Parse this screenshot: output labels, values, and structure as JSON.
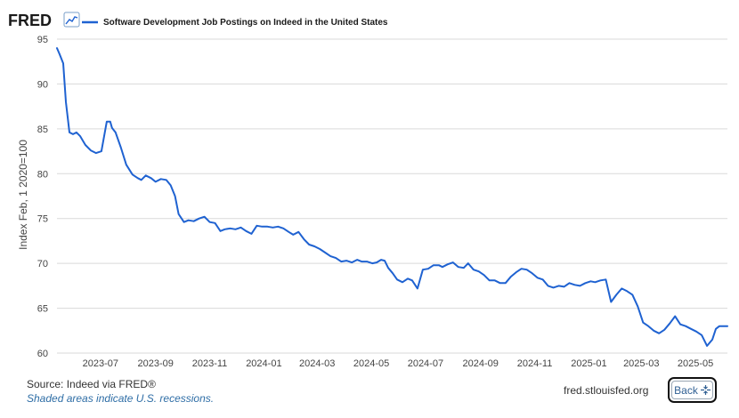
{
  "header": {
    "logo": "FRED",
    "legend_label": "Software Development Job Postings on Indeed in the United States",
    "logo_icon": "chart-line-icon"
  },
  "footer": {
    "source": "Source: Indeed via FRED®",
    "note": "Shaded areas indicate U.S. recessions.",
    "site": "fred.stlouisfed.org",
    "back_label": "Back",
    "back_icon": "collapse-arrows-icon"
  },
  "colors": {
    "series": "#1f62d1",
    "grid": "#d9d9d9",
    "axis_text": "#444444",
    "logo": "#1a1a1a"
  },
  "chart_data": {
    "type": "line",
    "title": "",
    "xlabel": "",
    "ylabel": "Index Feb, 1 2020=100",
    "ylim": [
      60,
      95
    ],
    "yticks": [
      60,
      65,
      70,
      75,
      80,
      85,
      90,
      95
    ],
    "xlim": [
      "2023-05-13",
      "2025-06-06"
    ],
    "xticks": [
      "2023-07",
      "2023-09",
      "2023-11",
      "2024-01",
      "2024-03",
      "2024-05",
      "2024-07",
      "2024-09",
      "2024-11",
      "2025-01",
      "2025-03",
      "2025-05"
    ],
    "grid": true,
    "legend": "top",
    "series": [
      {
        "name": "Software Development Job Postings on Indeed in the United States",
        "x": [
          "2023-05-13",
          "2023-05-16",
          "2023-05-20",
          "2023-05-23",
          "2023-05-27",
          "2023-05-31",
          "2023-06-04",
          "2023-06-08",
          "2023-06-14",
          "2023-06-20",
          "2023-06-26",
          "2023-07-02",
          "2023-07-08",
          "2023-07-12",
          "2023-07-14",
          "2023-07-18",
          "2023-07-24",
          "2023-07-30",
          "2023-08-06",
          "2023-08-12",
          "2023-08-16",
          "2023-08-21",
          "2023-08-27",
          "2023-09-01",
          "2023-09-07",
          "2023-09-13",
          "2023-09-18",
          "2023-09-23",
          "2023-09-27",
          "2023-10-03",
          "2023-10-08",
          "2023-10-14",
          "2023-10-20",
          "2023-10-26",
          "2023-11-01",
          "2023-11-07",
          "2023-11-13",
          "2023-11-18",
          "2023-11-24",
          "2023-11-30",
          "2023-12-06",
          "2023-12-12",
          "2023-12-18",
          "2023-12-24",
          "2023-12-30",
          "2024-01-05",
          "2024-01-11",
          "2024-01-17",
          "2024-01-23",
          "2024-01-29",
          "2024-02-03",
          "2024-02-09",
          "2024-02-15",
          "2024-02-21",
          "2024-02-27",
          "2024-03-04",
          "2024-03-10",
          "2024-03-16",
          "2024-03-22",
          "2024-03-28",
          "2024-04-03",
          "2024-04-09",
          "2024-04-15",
          "2024-04-20",
          "2024-04-26",
          "2024-05-02",
          "2024-05-07",
          "2024-05-12",
          "2024-05-16",
          "2024-05-20",
          "2024-05-25",
          "2024-05-30",
          "2024-06-05",
          "2024-06-11",
          "2024-06-16",
          "2024-06-22",
          "2024-06-28",
          "2024-07-04",
          "2024-07-10",
          "2024-07-16",
          "2024-07-20",
          "2024-07-26",
          "2024-08-01",
          "2024-08-07",
          "2024-08-13",
          "2024-08-18",
          "2024-08-24",
          "2024-08-30",
          "2024-09-05",
          "2024-09-11",
          "2024-09-17",
          "2024-09-23",
          "2024-09-29",
          "2024-10-05",
          "2024-10-11",
          "2024-10-17",
          "2024-10-23",
          "2024-10-29",
          "2024-11-04",
          "2024-11-10",
          "2024-11-16",
          "2024-11-22",
          "2024-11-28",
          "2024-12-04",
          "2024-12-10",
          "2024-12-16",
          "2024-12-22",
          "2024-12-28",
          "2025-01-03",
          "2025-01-08",
          "2025-01-14",
          "2025-01-20",
          "2025-01-26",
          "2025-02-01",
          "2025-02-07",
          "2025-02-13",
          "2025-02-19",
          "2025-02-25",
          "2025-03-03",
          "2025-03-09",
          "2025-03-15",
          "2025-03-21",
          "2025-03-27",
          "2025-04-02",
          "2025-04-08",
          "2025-04-14",
          "2025-04-20",
          "2025-04-26",
          "2025-05-02",
          "2025-05-08",
          "2025-05-14",
          "2025-05-20",
          "2025-05-24",
          "2025-05-28",
          "2025-06-01",
          "2025-06-06"
        ],
        "values": [
          94.0,
          93.3,
          92.3,
          88.0,
          84.6,
          84.4,
          84.6,
          84.2,
          83.2,
          82.6,
          82.3,
          82.5,
          85.8,
          85.8,
          85.1,
          84.6,
          82.9,
          81.0,
          79.9,
          79.5,
          79.3,
          79.8,
          79.5,
          79.1,
          79.4,
          79.3,
          78.7,
          77.5,
          75.5,
          74.6,
          74.8,
          74.7,
          75.0,
          75.2,
          74.6,
          74.5,
          73.6,
          73.8,
          73.9,
          73.8,
          74.0,
          73.6,
          73.3,
          74.2,
          74.1,
          74.1,
          74.0,
          74.1,
          73.9,
          73.5,
          73.2,
          73.5,
          72.7,
          72.1,
          71.9,
          71.6,
          71.2,
          70.8,
          70.6,
          70.2,
          70.3,
          70.1,
          70.4,
          70.2,
          70.2,
          70.0,
          70.1,
          70.4,
          70.3,
          69.5,
          68.9,
          68.2,
          67.9,
          68.3,
          68.1,
          67.2,
          69.3,
          69.4,
          69.8,
          69.8,
          69.6,
          69.9,
          70.1,
          69.6,
          69.5,
          70.0,
          69.3,
          69.1,
          68.7,
          68.1,
          68.1,
          67.8,
          67.8,
          68.5,
          69.0,
          69.4,
          69.3,
          68.9,
          68.4,
          68.2,
          67.5,
          67.3,
          67.5,
          67.4,
          67.8,
          67.6,
          67.5,
          67.8,
          68.0,
          67.9,
          68.1,
          68.2,
          65.7,
          66.5,
          67.2,
          66.9,
          66.5,
          65.2,
          63.4,
          63.0,
          62.5,
          62.2,
          62.6,
          63.3,
          64.1,
          63.2,
          63.0,
          62.7,
          62.4,
          62.0,
          60.8,
          61.5,
          62.7,
          63.0,
          63.0,
          63.0
        ]
      }
    ]
  }
}
